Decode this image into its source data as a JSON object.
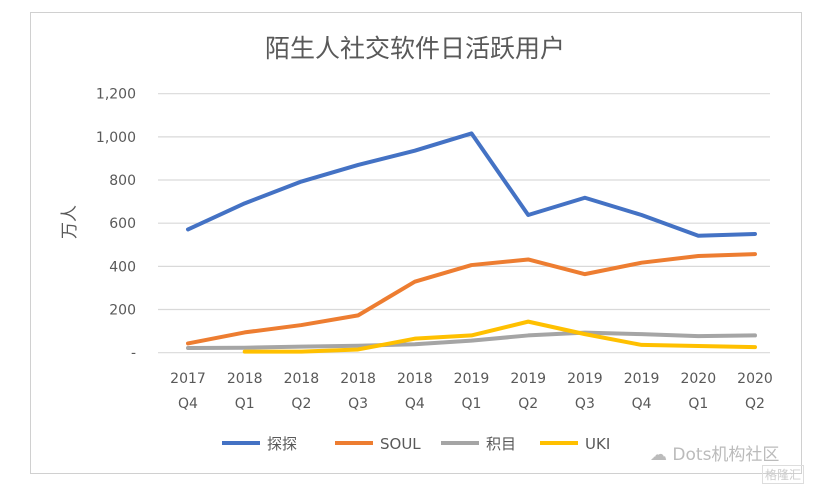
{
  "chart_data": {
    "type": "line",
    "title": "陌生人社交软件日活跃用户",
    "ylabel": "万人",
    "xlabel": "",
    "ylim": [
      0,
      1200
    ],
    "yticks": [
      "-",
      "200",
      "400",
      "600",
      "800",
      "1,000",
      "1,200"
    ],
    "grid": true,
    "legend": "bottom",
    "categories": [
      [
        "2017",
        "Q4"
      ],
      [
        "2018",
        "Q1"
      ],
      [
        "2018",
        "Q2"
      ],
      [
        "2018",
        "Q3"
      ],
      [
        "2018",
        "Q4"
      ],
      [
        "2019",
        "Q1"
      ],
      [
        "2019",
        "Q2"
      ],
      [
        "2019",
        "Q3"
      ],
      [
        "2019",
        "Q4"
      ],
      [
        "2020",
        "Q1"
      ],
      [
        "2020",
        "Q2"
      ]
    ],
    "series": [
      {
        "name": "探探",
        "color": "#4472c4",
        "values": [
          571,
          692,
          793,
          870,
          936,
          1016,
          638,
          718,
          638,
          542,
          550
        ]
      },
      {
        "name": "SOUL",
        "color": "#ed7d31",
        "values": [
          43,
          94,
          128,
          173,
          329,
          406,
          432,
          364,
          417,
          448,
          457
        ]
      },
      {
        "name": "积目",
        "color": "#a5a5a5",
        "values": [
          22,
          23,
          28,
          32,
          39,
          56,
          80,
          93,
          86,
          77,
          80
        ]
      },
      {
        "name": "UKI",
        "color": "#ffc000",
        "values": [
          null,
          5,
          5,
          15,
          65,
          80,
          144,
          86,
          36,
          31,
          26
        ]
      }
    ]
  },
  "watermark": {
    "text": "Dots机构社区",
    "logo_text": "格隆汇"
  }
}
